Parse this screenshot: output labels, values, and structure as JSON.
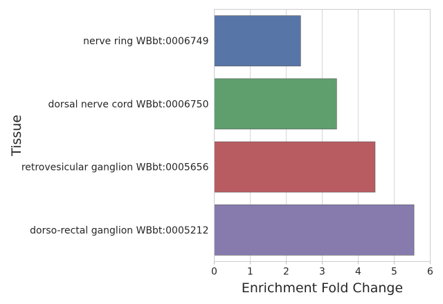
{
  "chart_data": {
    "type": "bar",
    "orientation": "horizontal",
    "categories": [
      "nerve ring WBbt:0006749",
      "dorsal nerve cord WBbt:0006750",
      "retrovesicular ganglion WBbt:0005656",
      "dorso-rectal ganglion WBbt:0005212"
    ],
    "values": [
      2.4,
      3.4,
      4.47,
      5.55
    ],
    "colors": [
      "#5875a8",
      "#5f9f6e",
      "#b85c62",
      "#877bae"
    ],
    "xlabel": "Enrichment Fold Change",
    "ylabel": "Tissue",
    "xlim": [
      0,
      6
    ],
    "xticks": [
      "0",
      "1",
      "2",
      "3",
      "4",
      "5",
      "6"
    ],
    "grid": true
  }
}
